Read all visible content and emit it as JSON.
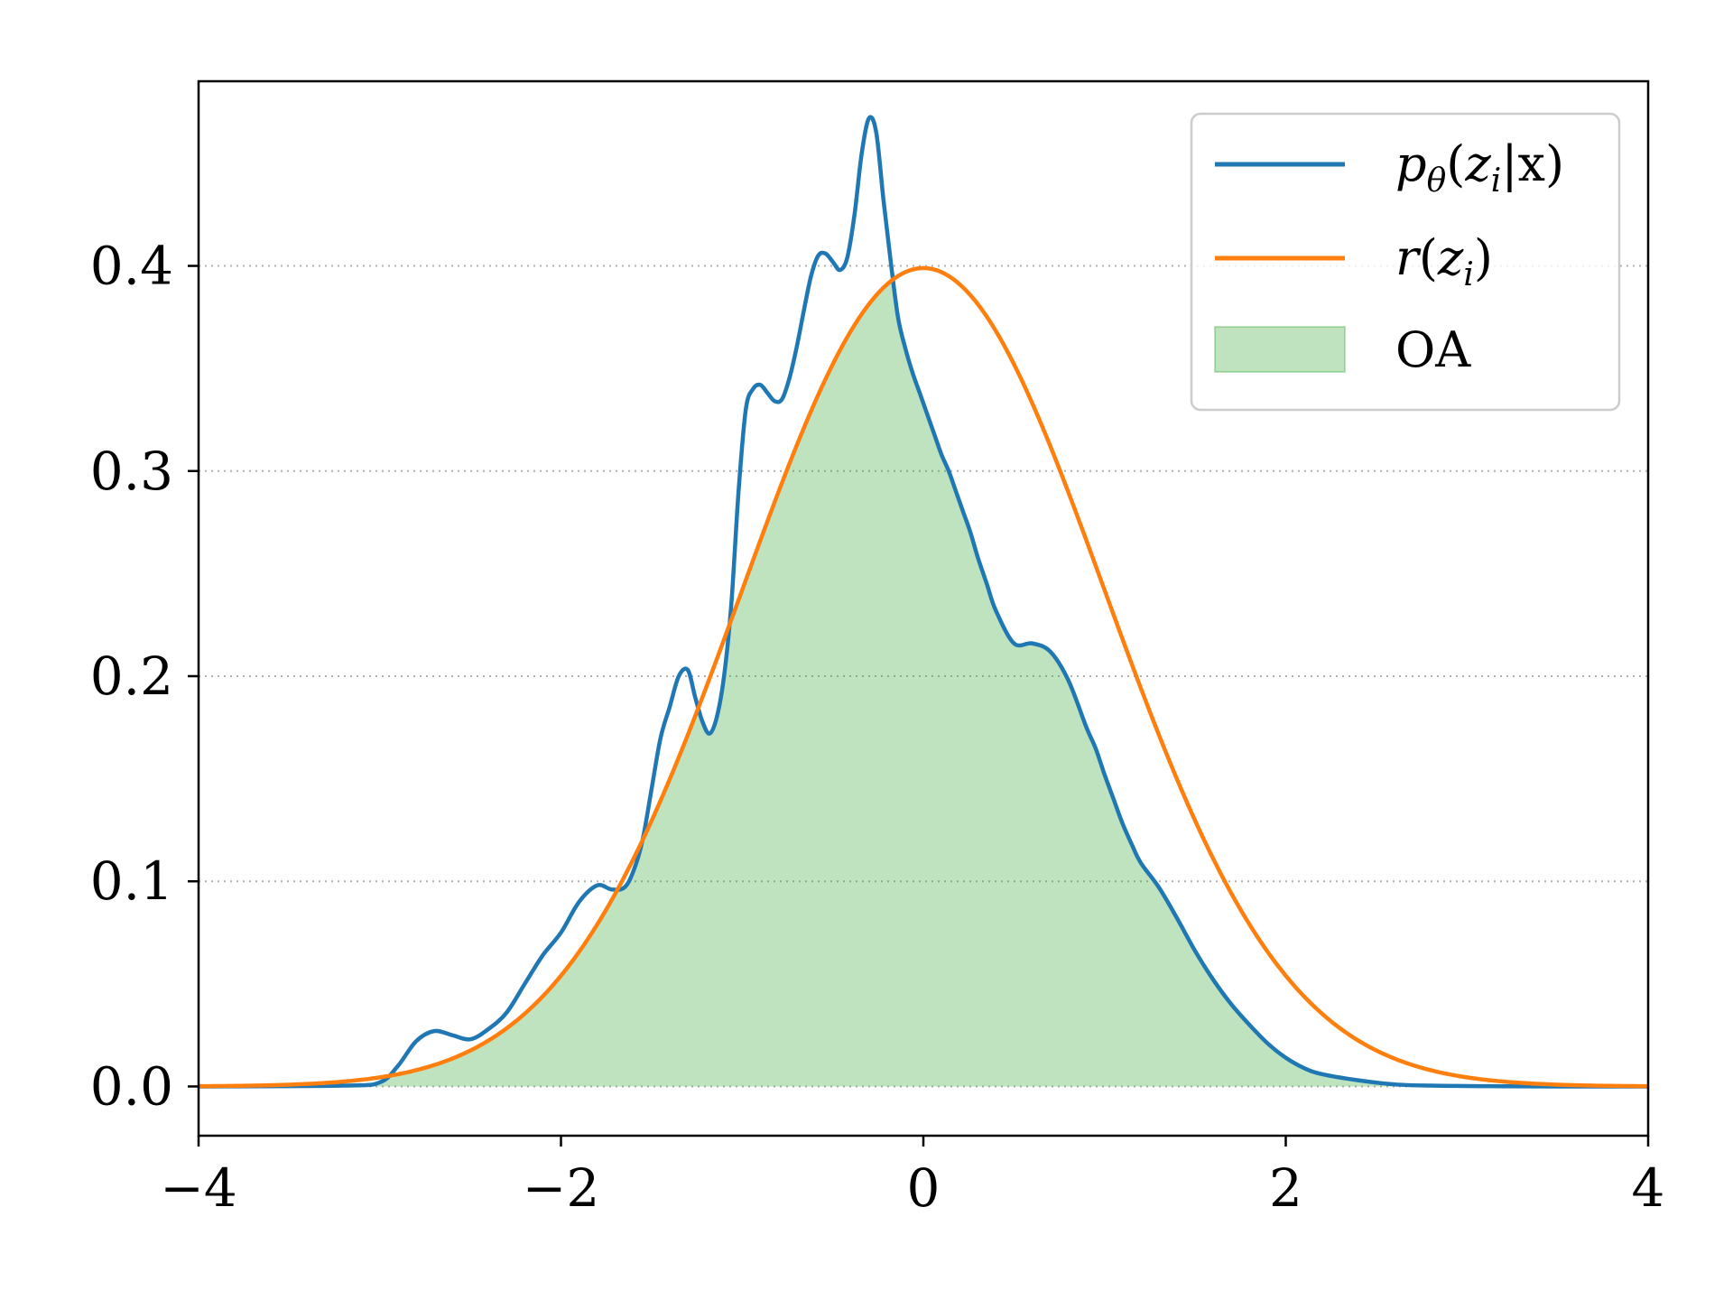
{
  "chart_data": {
    "type": "line",
    "title": "",
    "xlabel": "",
    "ylabel": "",
    "xlim": [
      -4,
      4
    ],
    "ylim": [
      -0.024,
      0.49
    ],
    "grid": "horizontal dotted",
    "legend_position": "top-right",
    "x_ticks": [
      -4,
      -2,
      0,
      2,
      4
    ],
    "x_tick_labels": [
      "−4",
      "−2",
      "0",
      "2",
      "4"
    ],
    "y_ticks": [
      0.0,
      0.1,
      0.2,
      0.3,
      0.4
    ],
    "y_tick_labels": [
      "0.0",
      "0.1",
      "0.2",
      "0.3",
      "0.4"
    ],
    "series": [
      {
        "name": "pθ(zi|x)",
        "kind": "line",
        "color": "#1f77b4",
        "x": [
          -4.0,
          -3.2,
          -3.0,
          -2.9,
          -2.8,
          -2.7,
          -2.6,
          -2.5,
          -2.4,
          -2.3,
          -2.2,
          -2.1,
          -2.0,
          -1.9,
          -1.8,
          -1.72,
          -1.65,
          -1.6,
          -1.55,
          -1.5,
          -1.45,
          -1.4,
          -1.35,
          -1.3,
          -1.26,
          -1.22,
          -1.18,
          -1.14,
          -1.1,
          -1.06,
          -1.02,
          -0.98,
          -0.94,
          -0.9,
          -0.86,
          -0.82,
          -0.78,
          -0.74,
          -0.7,
          -0.66,
          -0.62,
          -0.58,
          -0.54,
          -0.5,
          -0.46,
          -0.42,
          -0.38,
          -0.34,
          -0.3,
          -0.26,
          -0.22,
          -0.18,
          -0.14,
          -0.1,
          -0.06,
          -0.02,
          0.0,
          0.02,
          0.06,
          0.1,
          0.14,
          0.18,
          0.22,
          0.26,
          0.3,
          0.35,
          0.4,
          0.5,
          0.6,
          0.7,
          0.8,
          0.9,
          0.95,
          1.0,
          1.05,
          1.1,
          1.15,
          1.2,
          1.3,
          1.4,
          1.5,
          1.6,
          1.7,
          1.8,
          1.9,
          2.0,
          2.1,
          2.2,
          2.4,
          2.6,
          2.8,
          3.0,
          3.2,
          3.5,
          4.0
        ],
        "y": [
          0.0,
          0.0004,
          0.002,
          0.01,
          0.022,
          0.027,
          0.025,
          0.023,
          0.028,
          0.036,
          0.05,
          0.064,
          0.075,
          0.09,
          0.098,
          0.096,
          0.097,
          0.105,
          0.12,
          0.145,
          0.17,
          0.185,
          0.2,
          0.203,
          0.19,
          0.178,
          0.172,
          0.18,
          0.2,
          0.235,
          0.29,
          0.33,
          0.34,
          0.342,
          0.338,
          0.334,
          0.335,
          0.345,
          0.36,
          0.378,
          0.395,
          0.405,
          0.406,
          0.402,
          0.398,
          0.404,
          0.425,
          0.455,
          0.472,
          0.465,
          0.432,
          0.402,
          0.375,
          0.36,
          0.348,
          0.338,
          0.333,
          0.328,
          0.318,
          0.308,
          0.3,
          0.29,
          0.28,
          0.27,
          0.258,
          0.245,
          0.232,
          0.216,
          0.216,
          0.212,
          0.198,
          0.175,
          0.165,
          0.152,
          0.14,
          0.128,
          0.118,
          0.109,
          0.097,
          0.082,
          0.066,
          0.052,
          0.04,
          0.03,
          0.021,
          0.014,
          0.009,
          0.006,
          0.003,
          0.001,
          0.0004,
          0.0002,
          0.0001,
          0.0,
          0.0
        ]
      },
      {
        "name": "r(zi)",
        "kind": "line",
        "color": "#ff7f0e",
        "function": "standard normal pdf",
        "mean": 0,
        "std": 1
      },
      {
        "name": "OA",
        "kind": "area",
        "color": "#2ca02c",
        "fill_opacity": 0.3,
        "definition": "min(pθ(zi|x), r(zi))"
      }
    ]
  },
  "legend": {
    "entries": [
      {
        "base": "p",
        "sub": "θ",
        "args_open": "(",
        "arg": "z",
        "arg_sub": "i",
        "rest": "|x)",
        "color": "#1f77b4",
        "kind": "line"
      },
      {
        "base": "r",
        "sub": "",
        "args_open": "(",
        "arg": "z",
        "arg_sub": "i",
        "rest": ")",
        "color": "#ff7f0e",
        "kind": "line"
      },
      {
        "label": "OA",
        "color": "#2ca02c",
        "kind": "patch"
      }
    ]
  }
}
